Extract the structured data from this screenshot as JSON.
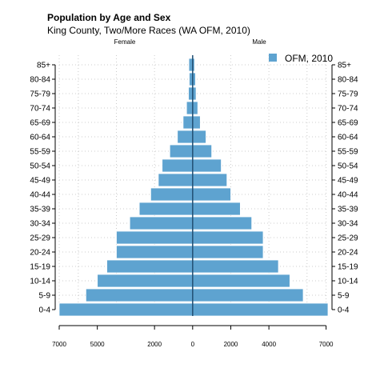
{
  "chart_data": {
    "type": "bar",
    "orientation": "horizontal-pyramid",
    "title": "Population by Age and Sex",
    "subtitle": "King County, Two/More Races (WA OFM, 2010)",
    "left_label": "Female",
    "right_label": "Male",
    "categories": [
      "0-4",
      "5-9",
      "10-14",
      "15-19",
      "20-24",
      "25-29",
      "30-34",
      "35-39",
      "40-44",
      "45-49",
      "50-54",
      "55-59",
      "60-64",
      "65-69",
      "70-74",
      "75-79",
      "80-84",
      "85+"
    ],
    "series": [
      {
        "name": "Female",
        "values": [
          7000,
          5600,
          5000,
          4500,
          4000,
          4000,
          3300,
          2800,
          2200,
          1800,
          1600,
          1200,
          800,
          500,
          320,
          220,
          180,
          200
        ]
      },
      {
        "name": "Male",
        "values": [
          7100,
          5800,
          5100,
          4500,
          3700,
          3700,
          3100,
          2500,
          2000,
          1800,
          1500,
          1000,
          700,
          400,
          270,
          180,
          150,
          100
        ]
      }
    ],
    "legend": {
      "label": "OFM, 2010",
      "placement": "top-right"
    },
    "x_ticks": [
      {
        "value": -7000,
        "label": "7000"
      },
      {
        "value": -5000,
        "label": "5000"
      },
      {
        "value": -2000,
        "label": "2000"
      },
      {
        "value": 0,
        "label": "0"
      },
      {
        "value": 2000,
        "label": "2000"
      },
      {
        "value": 4000,
        "label": "4000"
      },
      {
        "value": 7000,
        "label": "7000"
      }
    ],
    "grid_x_values": [
      -7000,
      -6000,
      -4000,
      -2000,
      0,
      2000,
      4000,
      6000,
      7000
    ],
    "grid": true,
    "xlim": [
      -7000,
      7100
    ],
    "colors": {
      "bar": "#5ea3d0",
      "bar_border": "#ffffff",
      "center_line": "#1f4e73",
      "grid": "#cccccc",
      "axis": "#000000"
    }
  }
}
